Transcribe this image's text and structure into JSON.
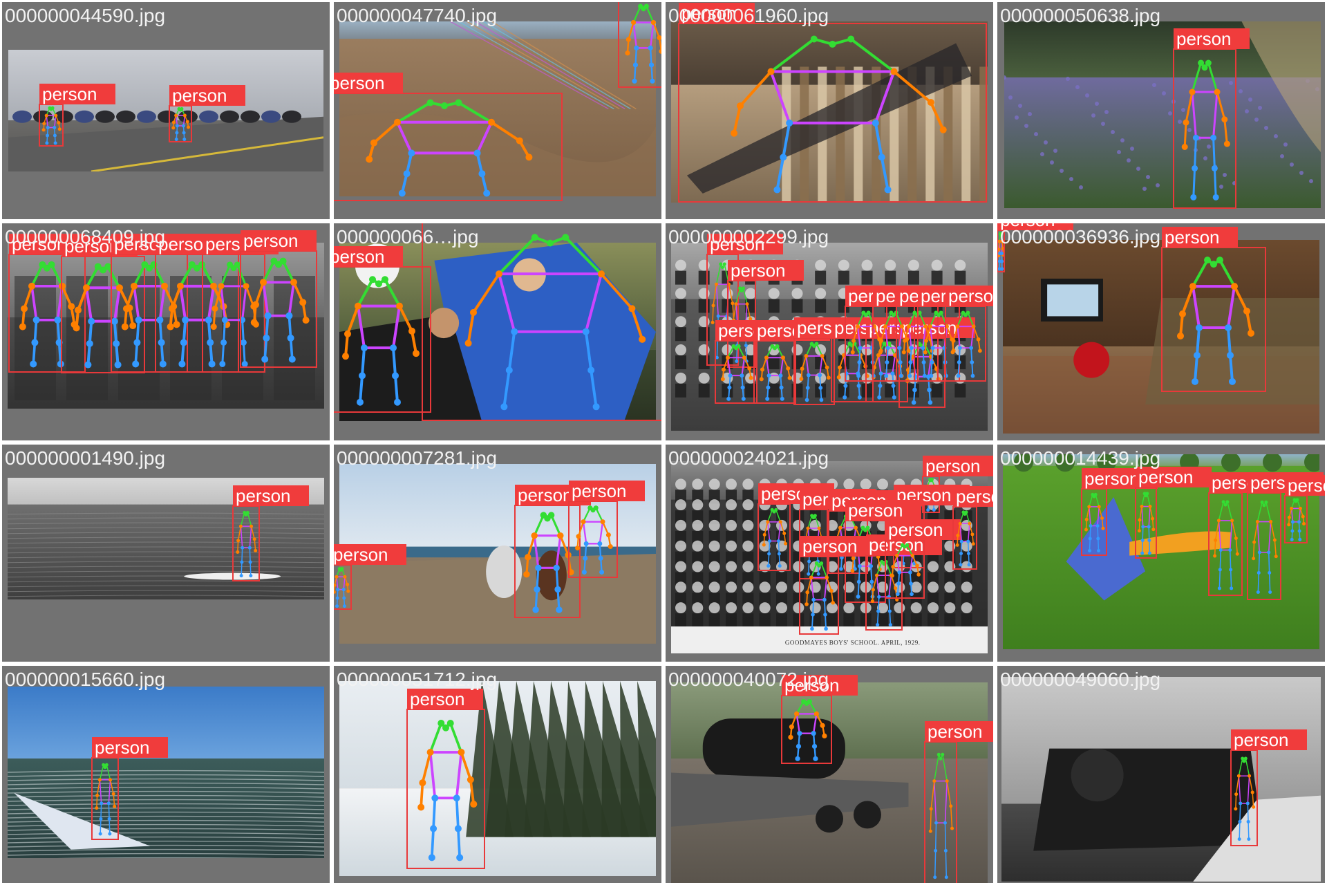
{
  "class_label": "person",
  "colors": {
    "tile_bg": "#727272",
    "box": "#e8393a",
    "label_bg": "#f03c3c",
    "label_text": "#ffffff",
    "filename_text": "#f2f2f2",
    "kp_head": "#33dd33",
    "kp_arm": "#ff8000",
    "kp_leg": "#3399ff",
    "kp_torso": "#cc44ff"
  },
  "tiles": [
    {
      "filename": "000000044590.jpg",
      "scene": "motorcycles-beach-road",
      "detections": 2
    },
    {
      "filename": "000000047740.jpg",
      "scene": "beach-sand-kite",
      "detections": 2
    },
    {
      "filename": "000000061960.jpg",
      "scene": "person-on-bed",
      "detections": 1
    },
    {
      "filename": "000000050638.jpg",
      "scene": "child-bluebell-forest",
      "detections": 1
    },
    {
      "filename": "000000068409.jpg",
      "scene": "seated-group-bw",
      "detections": 6
    },
    {
      "filename": "000000066…jpg",
      "scene": "football-header",
      "detections": 2
    },
    {
      "filename": "000000002299.jpg",
      "scene": "class-photo-bw",
      "detections": 14
    },
    {
      "filename": "000000036936.jpg",
      "scene": "living-room-tv",
      "detections": 2
    },
    {
      "filename": "000000001490.jpg",
      "scene": "paddleboard-sea",
      "detections": 1
    },
    {
      "filename": "000000007281.jpg",
      "scene": "horse-riders-beach",
      "detections": 3
    },
    {
      "filename": "000000024021.jpg",
      "scene": "school-photo-bw",
      "detections": 10
    },
    {
      "filename": "000000014439.jpg",
      "scene": "kite-park",
      "detections": 5
    },
    {
      "filename": "000000015660.jpg",
      "scene": "windsurfer",
      "detections": 1
    },
    {
      "filename": "000000051712.jpg",
      "scene": "skier-snow",
      "detections": 1
    },
    {
      "filename": "000000040072.jpg",
      "scene": "flatbed-truck",
      "detections": 2
    },
    {
      "filename": "000000049060.jpg",
      "scene": "steam-train-bw",
      "detections": 1
    }
  ],
  "caption_school": "GOODMAYES BOYS' SCHOOL.    APRIL, 1929."
}
